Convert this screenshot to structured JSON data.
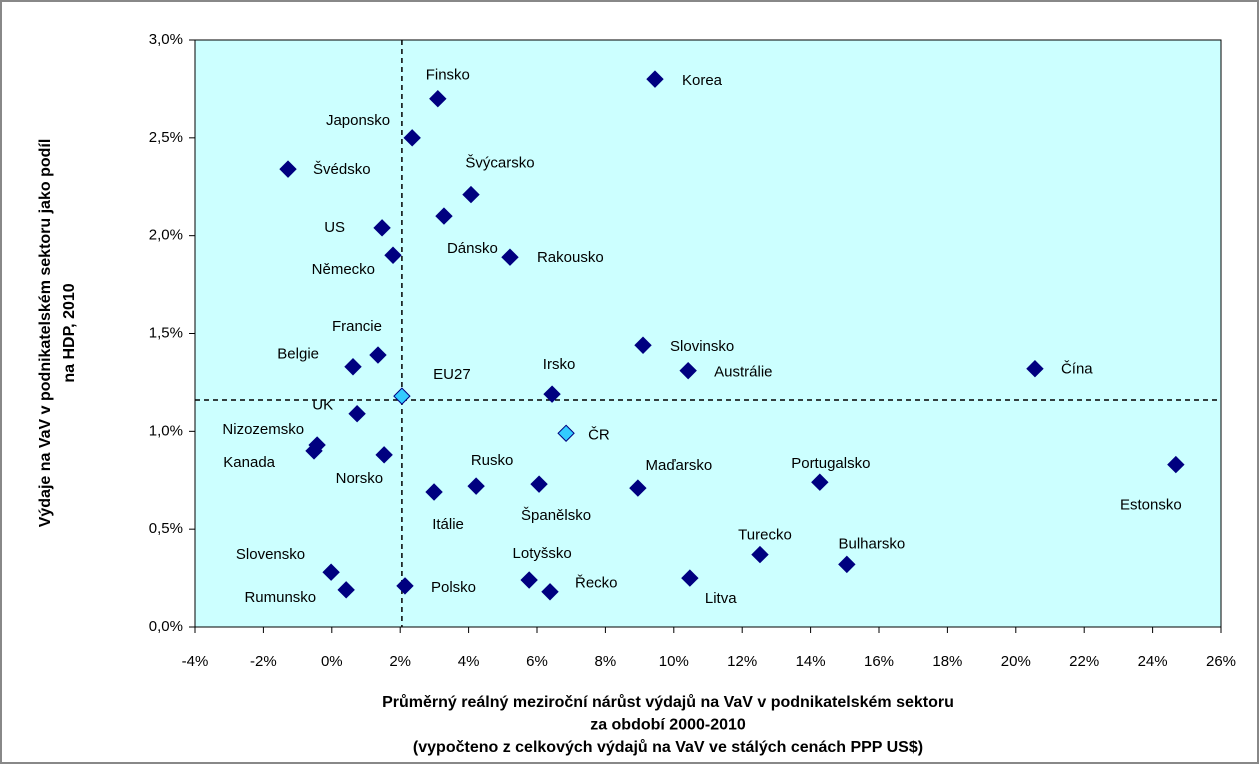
{
  "chart_data": {
    "type": "scatter",
    "labels": [
      "Finsko",
      "Korea",
      "Japonsko",
      "Švédsko",
      "Švýcarsko",
      "Dánsko",
      "US",
      "Německo",
      "Rakousko",
      "Slovinsko",
      "Austrálie",
      "Čína",
      "Francie",
      "Belgie",
      "EU27",
      "Irsko",
      "UK",
      "ČR",
      "Nizozemsko",
      "Kanada",
      "Norsko",
      "Estonsko",
      "Portugalsko",
      "Rusko",
      "Španělsko",
      "Maďarsko",
      "Itálie",
      "Turecko",
      "Bulharsko",
      "Slovensko",
      "Rumunsko",
      "Polsko",
      "Lotyšsko",
      "Řecko",
      "Litva"
    ],
    "x": [
      3.1,
      9.45,
      2.35,
      -1.28,
      4.07,
      3.28,
      1.47,
      1.79,
      5.21,
      9.1,
      10.42,
      20.56,
      1.35,
      0.62,
      2.05,
      6.44,
      0.74,
      6.85,
      -0.43,
      -0.52,
      1.53,
      24.68,
      14.27,
      4.22,
      6.06,
      8.95,
      2.99,
      12.52,
      15.06,
      -0.02,
      0.42,
      2.14,
      5.77,
      6.38,
      10.47
    ],
    "values": [
      2.7,
      2.8,
      2.5,
      2.34,
      2.21,
      2.1,
      2.04,
      1.9,
      1.89,
      1.44,
      1.31,
      1.32,
      1.39,
      1.33,
      1.18,
      1.19,
      1.09,
      0.99,
      0.93,
      0.9,
      0.88,
      0.83,
      0.74,
      0.72,
      0.73,
      0.71,
      0.69,
      0.37,
      0.32,
      0.28,
      0.19,
      0.21,
      0.24,
      0.18,
      0.25
    ],
    "colors": [
      "#000080",
      "#000080",
      "#000080",
      "#000080",
      "#000080",
      "#000080",
      "#000080",
      "#000080",
      "#000080",
      "#000080",
      "#000080",
      "#000080",
      "#000080",
      "#000080",
      "#33ccff",
      "#000080",
      "#000080",
      "#33ccff",
      "#000080",
      "#000080",
      "#000080",
      "#000080",
      "#000080",
      "#000080",
      "#000080",
      "#000080",
      "#000080",
      "#000080",
      "#000080",
      "#000080",
      "#000080",
      "#000080",
      "#000080",
      "#000080",
      "#000080"
    ],
    "vline": 2.05,
    "hline": 1.16,
    "xlim": [
      -4,
      26
    ],
    "xticks": [
      {
        "value": -4,
        "label": "-4%"
      },
      {
        "value": -2,
        "label": "-2%"
      },
      {
        "value": 0,
        "label": "0%"
      },
      {
        "value": 2,
        "label": "2%"
      },
      {
        "value": 4,
        "label": "4%"
      },
      {
        "value": 6,
        "label": "6%"
      },
      {
        "value": 8,
        "label": "8%"
      },
      {
        "value": 10,
        "label": "10%"
      },
      {
        "value": 12,
        "label": "12%"
      },
      {
        "value": 14,
        "label": "14%"
      },
      {
        "value": 16,
        "label": "16%"
      },
      {
        "value": 18,
        "label": "18%"
      },
      {
        "value": 20,
        "label": "20%"
      },
      {
        "value": 22,
        "label": "22%"
      },
      {
        "value": 24,
        "label": "24%"
      },
      {
        "value": 26,
        "label": "26%"
      }
    ],
    "ylim": [
      0,
      3
    ],
    "yticks": [
      {
        "value": 0,
        "label": "0,0%"
      },
      {
        "value": 0.5,
        "label": "0,5%"
      },
      {
        "value": 1,
        "label": "1,0%"
      },
      {
        "value": 1.5,
        "label": "1,5%"
      },
      {
        "value": 2,
        "label": "2,0%"
      },
      {
        "value": 2.5,
        "label": "2,5%"
      },
      {
        "value": 3,
        "label": "3,0%"
      }
    ],
    "x_axis_label": [
      "Průměrný reálný meziroční nárůst výdajů na VaV v podnikatelském sektoru",
      "za období 2000-2010",
      "(vypočteno z celkových výdajů na VaV ve stálých cenách PPP US$)"
    ],
    "y_axis_label": [
      "Výdaje na VaV v podnikatelském sektoru jako podíl",
      "na HDP, 2010"
    ],
    "plot_background": "#ccffff"
  }
}
